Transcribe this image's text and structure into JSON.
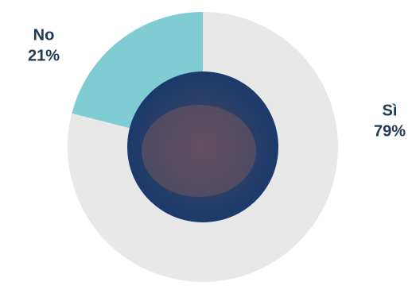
{
  "chart_data": {
    "type": "pie",
    "categories": [
      "Sì",
      "No"
    ],
    "values": [
      79,
      21
    ],
    "value_labels": [
      "79%",
      "21%"
    ],
    "colors": [
      "#e8e8e8",
      "#7fcdd3"
    ]
  }
}
